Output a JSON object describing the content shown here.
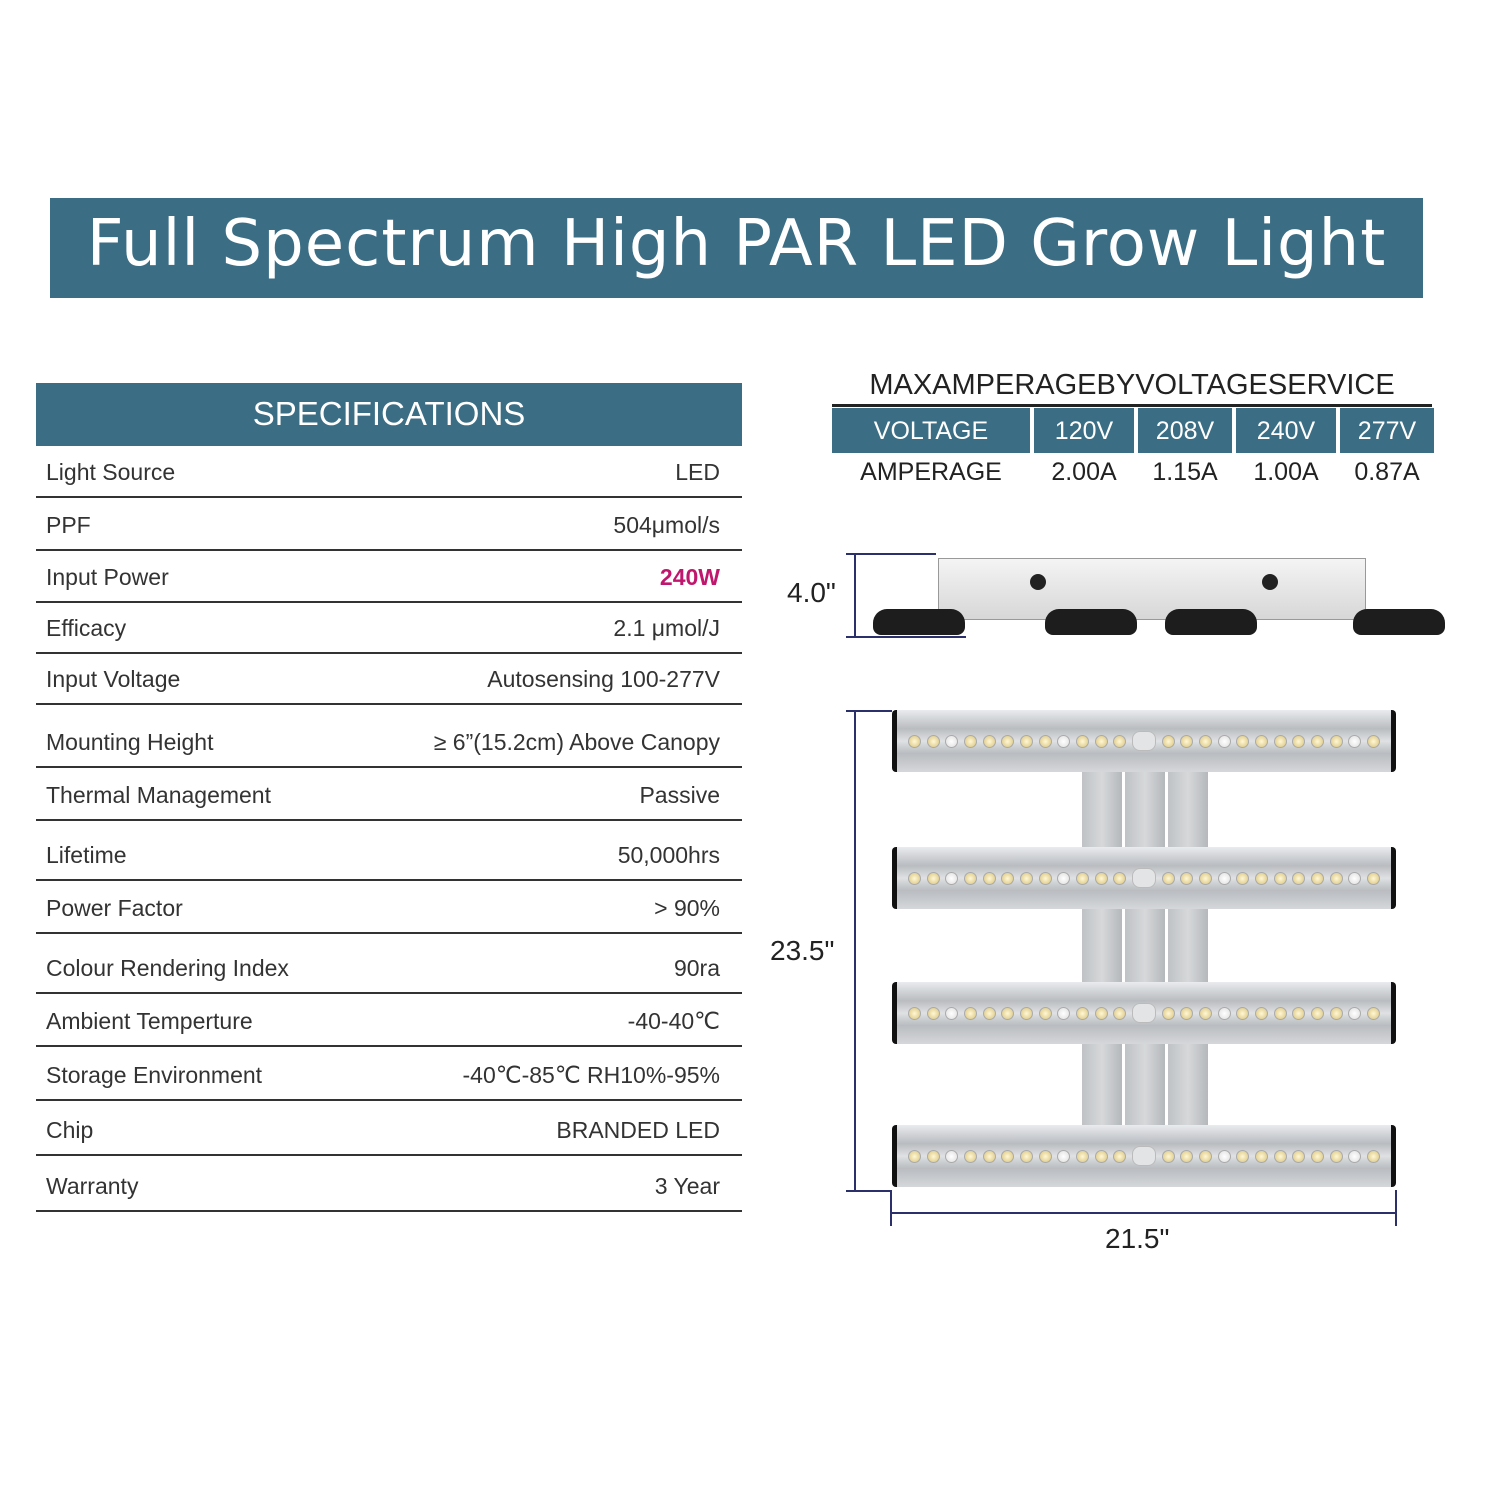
{
  "title": "Full Spectrum High PAR LED Grow Light",
  "specifications": {
    "header": "SPECIFICATIONS",
    "rows": [
      {
        "label": "Light Source",
        "value": "LED"
      },
      {
        "label": "PPF",
        "value": "504μmol/s"
      },
      {
        "label": "Input Power",
        "value": "240W",
        "highlight_color": "#c0176e"
      },
      {
        "label": "Efficacy",
        "value": "2.1 μmol/J"
      },
      {
        "label": "Input Voltage",
        "value": "Autosensing 100-277V"
      },
      {
        "label": "Mounting Height",
        "value": "≥ 6”(15.2cm) Above Canopy"
      },
      {
        "label": "Thermal Management",
        "value": "Passive"
      },
      {
        "label": "Lifetime",
        "value": "50,000hrs"
      },
      {
        "label": "Power Factor",
        "value": "> 90%"
      },
      {
        "label": "Colour Rendering Index",
        "value": "90ra"
      },
      {
        "label": "Ambient Temperture",
        "value": "-40-40℃"
      },
      {
        "label": "Storage Environment",
        "value": "-40℃-85℃   RH10%-95%"
      },
      {
        "label": "Chip",
        "value": "BRANDED LED"
      },
      {
        "label": "Warranty",
        "value": "3 Year"
      }
    ]
  },
  "amperage": {
    "title": "MAXAMPERAGEBYVOLTAGESERVICE",
    "header": [
      "VOLTAGE",
      "120V",
      "208V",
      "240V",
      "277V"
    ],
    "row": [
      "AMPERAGE",
      "2.00A",
      "1.15A",
      "1.00A",
      "0.87A"
    ]
  },
  "dimensions": {
    "height_side": "4.0\"",
    "height_front": "23.5\"",
    "width": "21.5\""
  },
  "colors": {
    "accent": "#3b6e84",
    "dimension_line": "#2b2f6a"
  }
}
